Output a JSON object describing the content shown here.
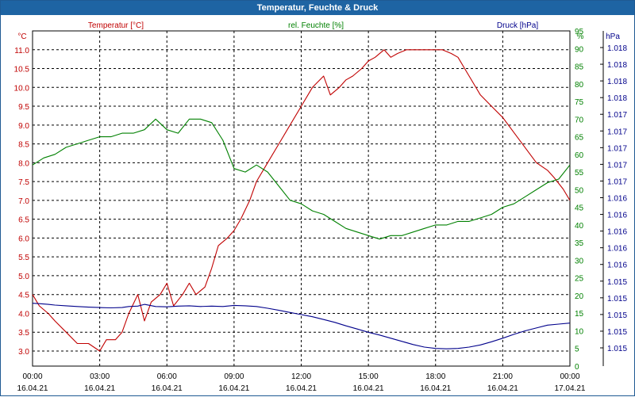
{
  "window": {
    "title": "Temperatur, Feuchte & Druck"
  },
  "chart_data": {
    "type": "line",
    "title": "Temperatur, Feuchte & Druck",
    "grid": true,
    "x_tick_times": [
      "00:00",
      "03:00",
      "06:00",
      "09:00",
      "12:00",
      "15:00",
      "18:00",
      "21:00",
      "00:00"
    ],
    "x_tick_dates": [
      "16.04.21",
      "16.04.21",
      "16.04.21",
      "16.04.21",
      "16.04.21",
      "16.04.21",
      "16.04.21",
      "16.04.21",
      "17.04.21"
    ],
    "xlim_hours": [
      0,
      24
    ],
    "axes": {
      "temperature": {
        "label": "Temperatur [°C]",
        "unit": "°C",
        "ylim": [
          2.6,
          11.5
        ],
        "ticks": [
          "3.0",
          "3.5",
          "4.0",
          "4.5",
          "5.0",
          "5.5",
          "6.0",
          "6.5",
          "7.0",
          "7.5",
          "8.0",
          "8.5",
          "9.0",
          "9.5",
          "10.0",
          "10.5",
          "11.0"
        ],
        "color": "#c00000"
      },
      "humidity": {
        "label": "rel. Feuchte [%]",
        "unit": "%",
        "ylim": [
          0,
          95
        ],
        "ticks": [
          "0",
          "5",
          "10",
          "15",
          "20",
          "25",
          "30",
          "35",
          "40",
          "45",
          "50",
          "55",
          "60",
          "65",
          "70",
          "75",
          "80",
          "85",
          "90",
          "95"
        ],
        "color": "#008000"
      },
      "pressure": {
        "label": "Druck [hPa]",
        "unit": "hPa",
        "ticks": [
          "1.015",
          "1.015",
          "1.015",
          "1.015",
          "1.015",
          "1.016",
          "1.016",
          "1.016",
          "1.016",
          "1.016",
          "1.017",
          "1.017",
          "1.017",
          "1.017",
          "1.017",
          "1.018",
          "1.018",
          "1.018",
          "1.018"
        ],
        "color": "#00008b"
      }
    },
    "series": [
      {
        "name": "Temperatur [°C]",
        "axis": "temperature",
        "color": "#c00000",
        "x": [
          0,
          0.3,
          0.7,
          1,
          1.5,
          2,
          2.5,
          3,
          3.3,
          3.7,
          4,
          4.3,
          4.7,
          5,
          5.3,
          5.7,
          6,
          6.3,
          6.7,
          7,
          7.3,
          7.7,
          8,
          8.3,
          8.7,
          9,
          9.3,
          9.7,
          10,
          10.5,
          11,
          11.5,
          12,
          12.5,
          13,
          13.3,
          13.7,
          14,
          14.3,
          14.7,
          15,
          15.3,
          15.7,
          16,
          16.3,
          16.7,
          17,
          17.3,
          17.7,
          18,
          18.3,
          18.7,
          19,
          19.3,
          19.7,
          20,
          20.5,
          21,
          21.5,
          22,
          22.5,
          23,
          23.3,
          23.7,
          24
        ],
        "values": [
          4.5,
          4.2,
          4.0,
          3.8,
          3.5,
          3.2,
          3.2,
          3.0,
          3.3,
          3.3,
          3.5,
          4.0,
          4.5,
          3.8,
          4.3,
          4.5,
          4.8,
          4.2,
          4.5,
          4.8,
          4.5,
          4.7,
          5.2,
          5.8,
          6.0,
          6.2,
          6.5,
          7.0,
          7.5,
          8.0,
          8.5,
          9.0,
          9.5,
          10.0,
          10.3,
          9.8,
          10.0,
          10.2,
          10.3,
          10.5,
          10.7,
          10.8,
          11.0,
          10.8,
          10.9,
          11.0,
          11.0,
          11.0,
          11.0,
          11.0,
          11.0,
          10.9,
          10.8,
          10.5,
          10.1,
          9.8,
          9.5,
          9.2,
          8.8,
          8.4,
          8.0,
          7.8,
          7.6,
          7.3,
          7.0
        ]
      },
      {
        "name": "rel. Feuchte [%]",
        "axis": "humidity",
        "color": "#008000",
        "x": [
          0,
          0.5,
          1,
          1.5,
          2,
          2.5,
          3,
          3.5,
          4,
          4.5,
          5,
          5.5,
          6,
          6.5,
          7,
          7.5,
          8,
          8.5,
          9,
          9.5,
          10,
          10.5,
          11,
          11.5,
          12,
          12.5,
          13,
          13.5,
          14,
          14.5,
          15,
          15.5,
          16,
          16.5,
          17,
          17.5,
          18,
          18.5,
          19,
          19.5,
          20,
          20.5,
          21,
          21.5,
          22,
          22.5,
          23,
          23.5,
          24
        ],
        "values": [
          57,
          59,
          60,
          62,
          63,
          64,
          65,
          65,
          66,
          66,
          67,
          70,
          67,
          66,
          70,
          70,
          69,
          64,
          56,
          55,
          57,
          55,
          51,
          47,
          46,
          44,
          43,
          41,
          39,
          38,
          37,
          36,
          37,
          37,
          38,
          39,
          40,
          40,
          41,
          41,
          42,
          43,
          45,
          46,
          48,
          50,
          52,
          53,
          57
        ]
      },
      {
        "name": "Druck [hPa]",
        "axis": "pressure",
        "color": "#00008b",
        "x": [
          0,
          0.3,
          0.7,
          1,
          1.5,
          2,
          2.5,
          3,
          3.5,
          4,
          4.3,
          4.7,
          5,
          5.5,
          6,
          6.5,
          7,
          7.5,
          8,
          8.5,
          9,
          9.5,
          10,
          10.5,
          11,
          11.5,
          12,
          12.5,
          13,
          13.5,
          14,
          14.5,
          15,
          15.5,
          16,
          16.5,
          17,
          17.5,
          18,
          18.5,
          19,
          19.5,
          20,
          20.5,
          21,
          21.5,
          22,
          22.5,
          23,
          23.5,
          24
        ],
        "values": [
          17.8,
          17.7,
          17.5,
          17.3,
          17.1,
          16.9,
          16.7,
          16.6,
          16.5,
          16.6,
          16.9,
          17.0,
          17.5,
          16.9,
          16.8,
          17.0,
          17.1,
          16.9,
          17.0,
          16.9,
          17.2,
          17.1,
          16.9,
          16.4,
          15.8,
          15.2,
          14.6,
          14.0,
          13.2,
          12.4,
          11.4,
          10.5,
          9.6,
          8.8,
          7.9,
          7.0,
          6.1,
          5.4,
          5.0,
          4.9,
          5.0,
          5.4,
          6.0,
          6.9,
          7.9,
          9.0,
          10.0,
          10.8,
          11.6,
          11.9,
          12.2
        ]
      }
    ]
  }
}
